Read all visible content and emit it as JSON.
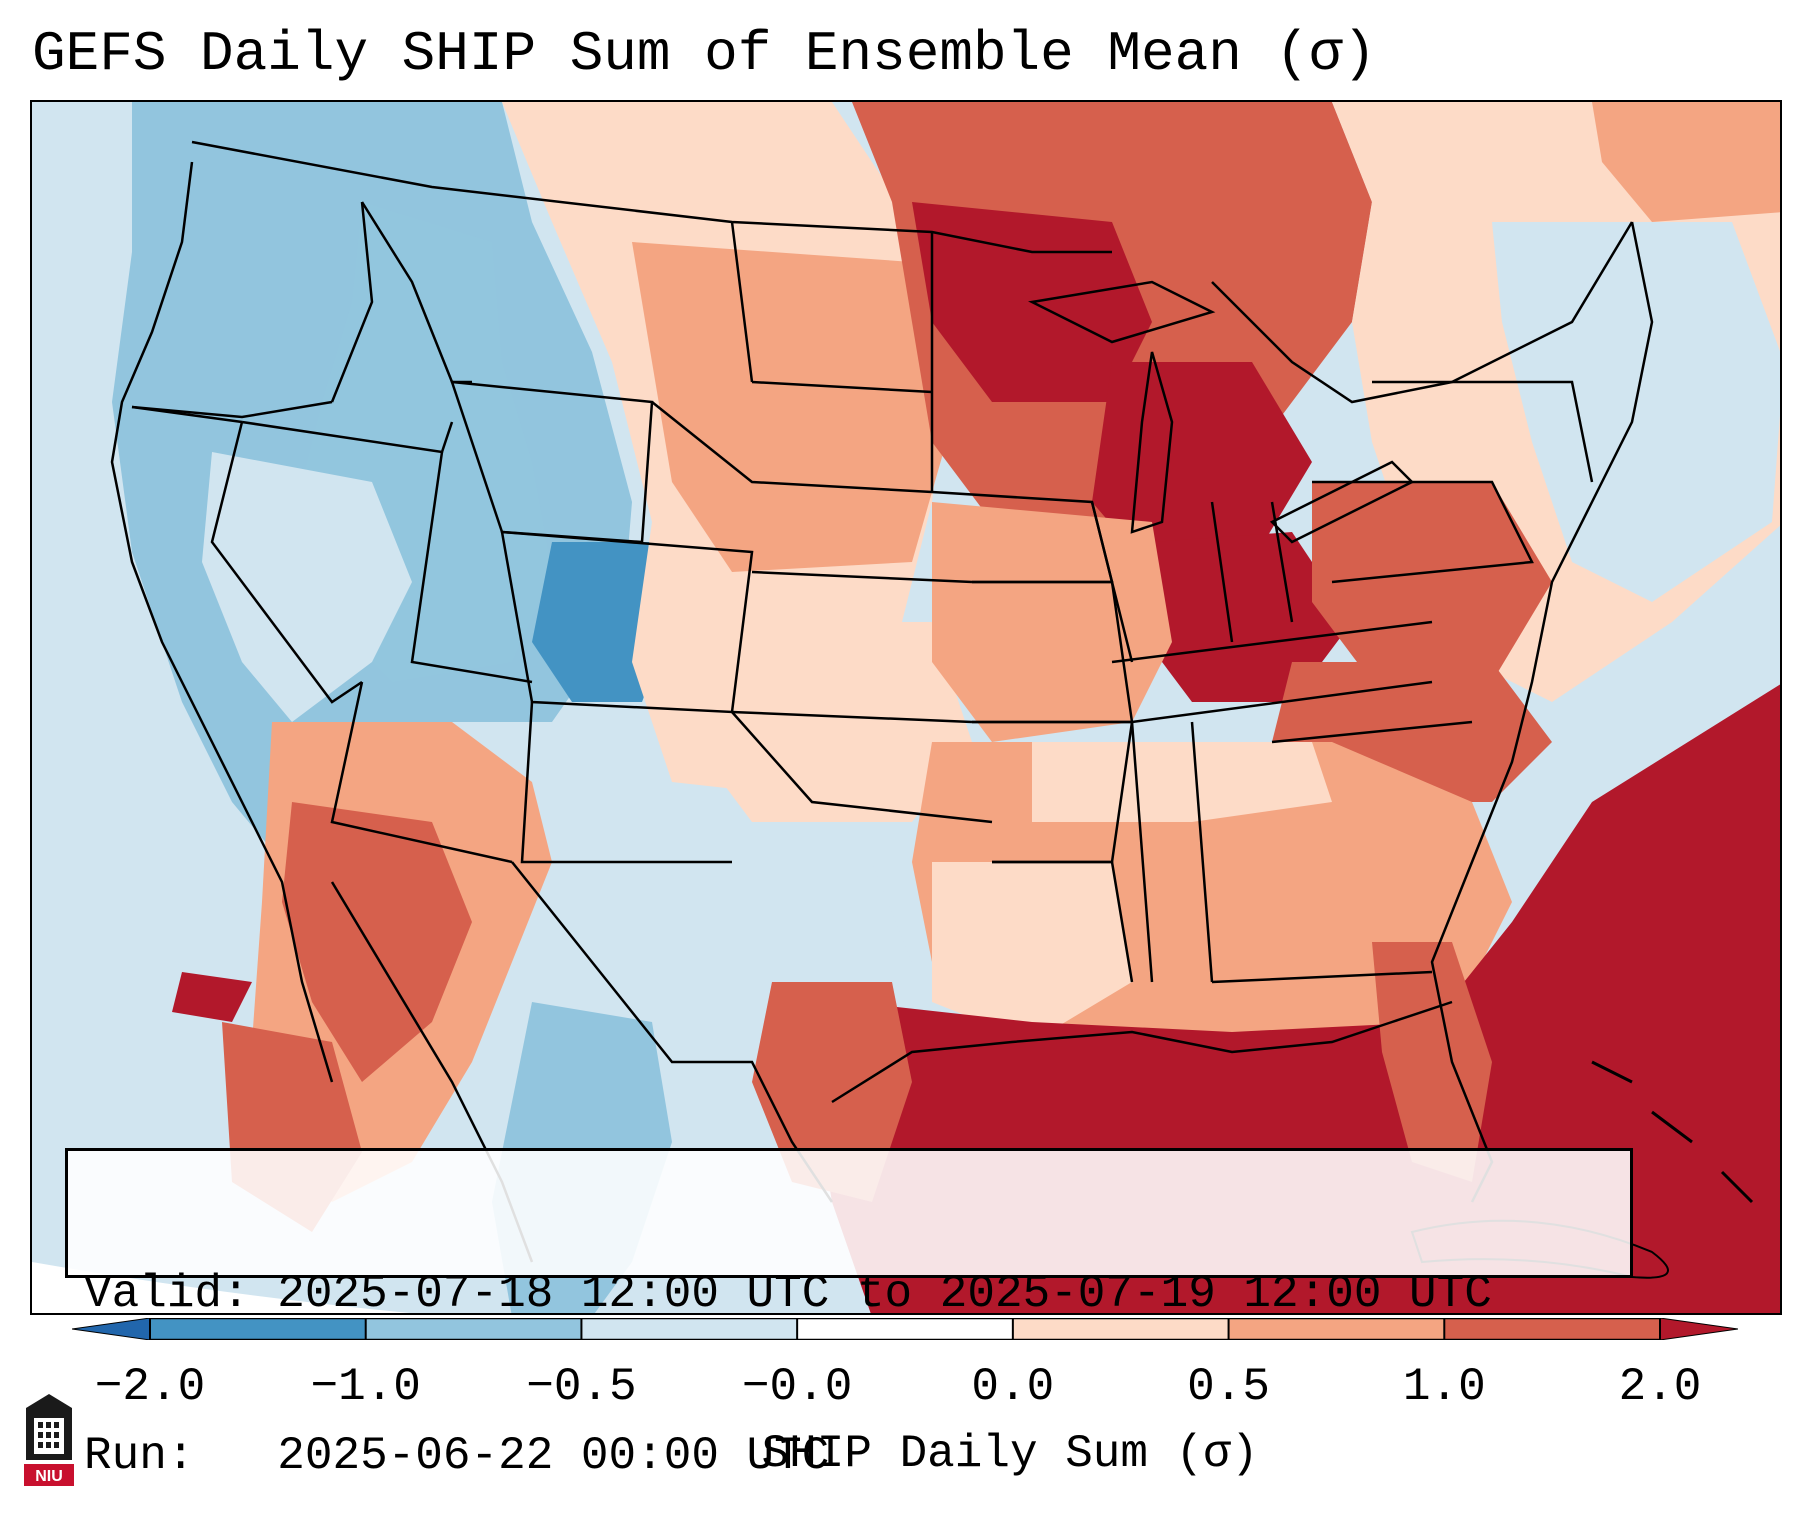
{
  "title": "GEFS Daily SHIP Sum of Ensemble Mean (σ)",
  "info": {
    "valid_label": "Valid:",
    "valid_value": "2025-07-18 12:00 UTC to 2025-07-19 12:00 UTC",
    "run_label": "Run:",
    "run_value": "2025-06-22 00:00 UTC"
  },
  "colorbar": {
    "label": "SHIP Daily Sum (σ)",
    "ticks": [
      "−2.0",
      "−1.0",
      "−0.5",
      "−0.0",
      "0.0",
      "0.5",
      "1.0",
      "2.0"
    ],
    "colors": [
      "#2166ac",
      "#4393c3",
      "#92c5de",
      "#d1e5f0",
      "#ffffff",
      "#fddbc7",
      "#f4a582",
      "#d6604d",
      "#b2182b"
    ],
    "extend": "both"
  },
  "map": {
    "region": "Contiguous United States",
    "colors": {
      "strong_negative": "#4393c3",
      "negative": "#92c5de",
      "weak_negative": "#d1e5f0",
      "weak_positive": "#fddbc7",
      "positive": "#f4a582",
      "strong_positive": "#d6604d",
      "very_strong_positive": "#b2182b"
    }
  },
  "logo": {
    "text": "NIU",
    "icon": "niu-logo-icon"
  }
}
